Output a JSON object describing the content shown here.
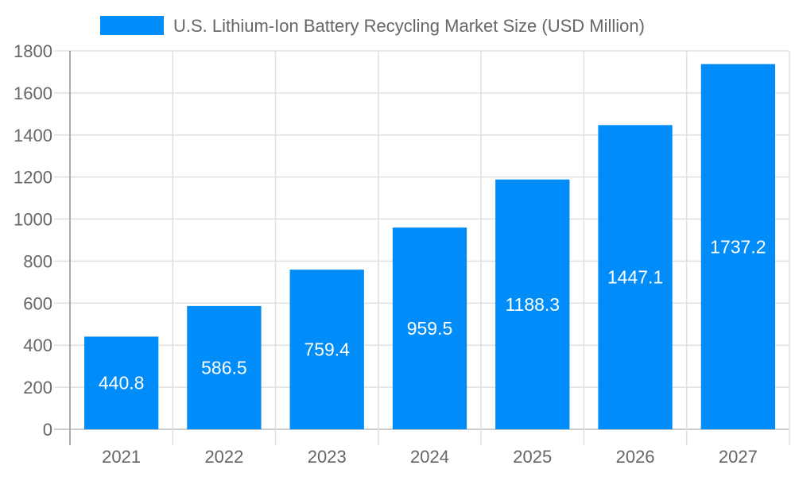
{
  "chart_data": {
    "type": "bar",
    "categories": [
      "2021",
      "2022",
      "2023",
      "2024",
      "2025",
      "2026",
      "2027"
    ],
    "series": [
      {
        "name": "U.S. Lithium-Ion Battery Recycling Market Size (USD Million)",
        "values": [
          440.8,
          586.5,
          759.4,
          959.5,
          1188.3,
          1447.1,
          1737.2
        ],
        "color": "#008cf9"
      }
    ],
    "data_labels": [
      "440.8",
      "586.5",
      "759.4",
      "959.5",
      "1188.3",
      "1447.1",
      "1737.2"
    ],
    "title": "",
    "xlabel": "",
    "ylabel": "",
    "ylim": [
      0,
      1800
    ],
    "yticks": [
      0,
      200,
      400,
      600,
      800,
      1000,
      1200,
      1400,
      1600,
      1800
    ],
    "grid": true,
    "legend": "top-center"
  }
}
